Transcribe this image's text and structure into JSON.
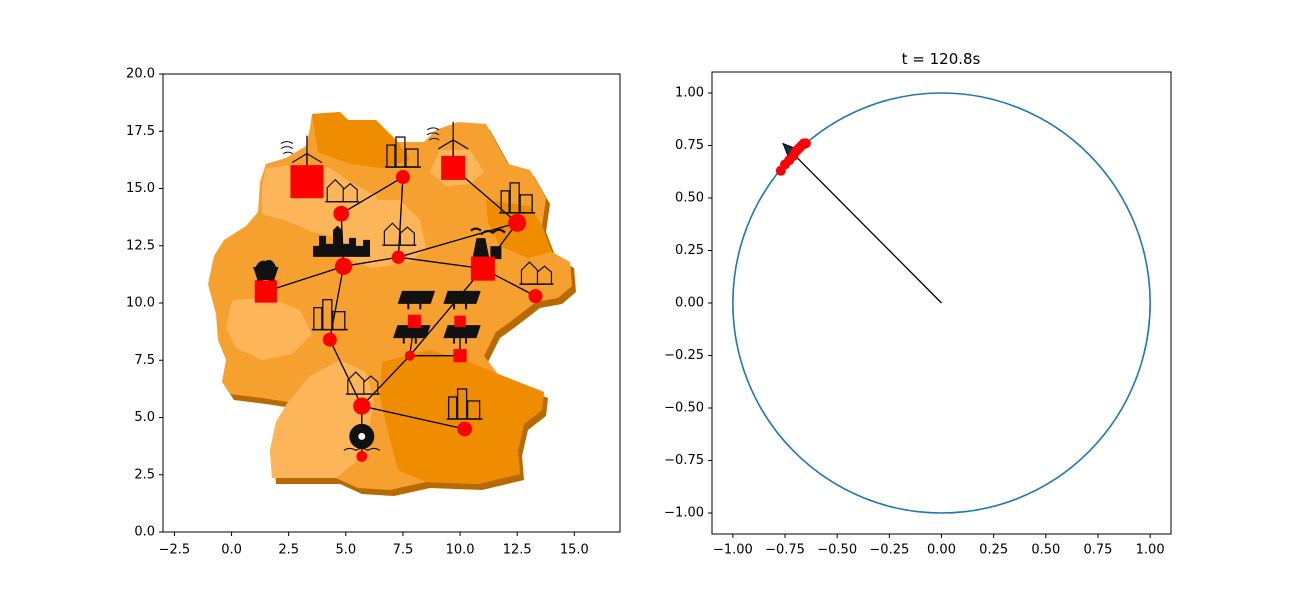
{
  "colors": {
    "region_light": "#FDB55A",
    "region_mid": "#F6A030",
    "region_dark": "#F08C00",
    "region_side": "#B86A00",
    "node": "#FF0000",
    "line": "#000000",
    "circle": "#1f77b4",
    "icon": "#111111"
  },
  "chart_data": [
    {
      "type": "map-network",
      "title": "",
      "xlim": [
        -3.0,
        17.0
      ],
      "ylim": [
        0.0,
        20.0
      ],
      "xticks": [
        -2.5,
        0.0,
        2.5,
        5.0,
        7.5,
        10.0,
        12.5,
        15.0
      ],
      "xtick_labels": [
        "−2.5",
        "0.0",
        "2.5",
        "5.0",
        "7.5",
        "10.0",
        "12.5",
        "15.0"
      ],
      "yticks": [
        0.0,
        2.5,
        5.0,
        7.5,
        10.0,
        12.5,
        15.0,
        17.5,
        20.0
      ],
      "ytick_labels": [
        "0.0",
        "2.5",
        "5.0",
        "7.5",
        "10.0",
        "12.5",
        "15.0",
        "17.5",
        "20.0"
      ],
      "nodes": [
        {
          "id": "n1",
          "x": 3.3,
          "y": 15.3,
          "shape": "square",
          "size": 3.0,
          "icon": "wind-turbine-icon"
        },
        {
          "id": "n2",
          "x": 9.7,
          "y": 15.9,
          "shape": "square",
          "size": 2.0,
          "icon": "wind-turbine-icon"
        },
        {
          "id": "n3",
          "x": 7.5,
          "y": 15.5,
          "shape": "circle",
          "size": 1.0,
          "icon": "city-icon"
        },
        {
          "id": "n4",
          "x": 4.8,
          "y": 13.9,
          "shape": "circle",
          "size": 1.2,
          "icon": "town-icon"
        },
        {
          "id": "n5",
          "x": 12.5,
          "y": 13.5,
          "shape": "circle",
          "size": 1.5,
          "icon": "city-icon"
        },
        {
          "id": "n6",
          "x": 7.3,
          "y": 12.0,
          "shape": "circle",
          "size": 0.9,
          "icon": "town-icon"
        },
        {
          "id": "n7",
          "x": 4.9,
          "y": 11.6,
          "shape": "circle",
          "size": 1.4,
          "icon": "skyline-icon"
        },
        {
          "id": "n8",
          "x": 11.0,
          "y": 11.5,
          "shape": "square",
          "size": 2.0,
          "icon": "coal-plant-icon"
        },
        {
          "id": "n9",
          "x": 1.5,
          "y": 10.5,
          "shape": "square",
          "size": 1.8,
          "icon": "mine-cart-icon"
        },
        {
          "id": "n10",
          "x": 13.3,
          "y": 10.3,
          "shape": "circle",
          "size": 1.0,
          "icon": "town-icon"
        },
        {
          "id": "n11",
          "x": 4.3,
          "y": 8.4,
          "shape": "circle",
          "size": 1.0,
          "icon": "city-icon"
        },
        {
          "id": "n12",
          "x": 8.0,
          "y": 9.2,
          "shape": "square",
          "size": 0.8,
          "icon": "solar-panel-icon"
        },
        {
          "id": "n13",
          "x": 10.0,
          "y": 9.2,
          "shape": "square",
          "size": 0.6,
          "icon": "solar-panel-icon"
        },
        {
          "id": "n14",
          "x": 7.8,
          "y": 7.7,
          "shape": "circle",
          "size": 0.5,
          "icon": "solar-panel-icon"
        },
        {
          "id": "n15",
          "x": 10.0,
          "y": 7.7,
          "shape": "square",
          "size": 0.8,
          "icon": "solar-panel-icon"
        },
        {
          "id": "n16",
          "x": 5.7,
          "y": 5.5,
          "shape": "circle",
          "size": 1.4,
          "icon": "town-icon"
        },
        {
          "id": "n17",
          "x": 10.2,
          "y": 4.5,
          "shape": "circle",
          "size": 1.1,
          "icon": "city-icon"
        },
        {
          "id": "n18",
          "x": 5.7,
          "y": 3.3,
          "shape": "circle",
          "size": 0.6,
          "icon": "water-wheel-icon"
        }
      ],
      "edges": [
        [
          "n3",
          "n4"
        ],
        [
          "n3",
          "n6"
        ],
        [
          "n2",
          "n5"
        ],
        [
          "n4",
          "n7"
        ],
        [
          "n7",
          "n6"
        ],
        [
          "n6",
          "n5"
        ],
        [
          "n6",
          "n8"
        ],
        [
          "n5",
          "n8"
        ],
        [
          "n7",
          "n9"
        ],
        [
          "n7",
          "n11"
        ],
        [
          "n8",
          "n14"
        ],
        [
          "n8",
          "n10"
        ],
        [
          "n11",
          "n16"
        ],
        [
          "n16",
          "n14"
        ],
        [
          "n16",
          "n17"
        ],
        [
          "n16",
          "n18"
        ],
        [
          "n12",
          "n14"
        ],
        [
          "n13",
          "n15"
        ],
        [
          "n14",
          "n15"
        ]
      ]
    },
    {
      "type": "phasor",
      "title": "t = 120.8s",
      "xlim": [
        -1.1,
        1.1
      ],
      "ylim": [
        -1.1,
        1.1
      ],
      "xticks": [
        -1.0,
        -0.75,
        -0.5,
        -0.25,
        0.0,
        0.25,
        0.5,
        0.75,
        1.0
      ],
      "xtick_labels": [
        "−1.00",
        "−0.75",
        "−0.50",
        "−0.25",
        "0.00",
        "0.25",
        "0.50",
        "0.75",
        "1.00"
      ],
      "yticks": [
        -1.0,
        -0.75,
        -0.5,
        -0.25,
        0.0,
        0.25,
        0.5,
        0.75,
        1.0
      ],
      "ytick_labels": [
        "−1.00",
        "−0.75",
        "−0.50",
        "−0.25",
        "0.00",
        "0.25",
        "0.50",
        "0.75",
        "1.00"
      ],
      "circle": {
        "center": [
          0.0,
          0.0
        ],
        "radius": 1.0
      },
      "arrow": {
        "from": [
          0.0,
          0.0
        ],
        "to": [
          -0.76,
          0.76
        ]
      },
      "points": [
        {
          "x": -0.77,
          "y": 0.63
        },
        {
          "x": -0.75,
          "y": 0.66
        },
        {
          "x": -0.73,
          "y": 0.68
        },
        {
          "x": -0.71,
          "y": 0.7
        },
        {
          "x": -0.7,
          "y": 0.72
        },
        {
          "x": -0.69,
          "y": 0.73
        },
        {
          "x": -0.68,
          "y": 0.74
        },
        {
          "x": -0.67,
          "y": 0.75
        },
        {
          "x": -0.66,
          "y": 0.76
        },
        {
          "x": -0.65,
          "y": 0.76
        }
      ]
    }
  ]
}
